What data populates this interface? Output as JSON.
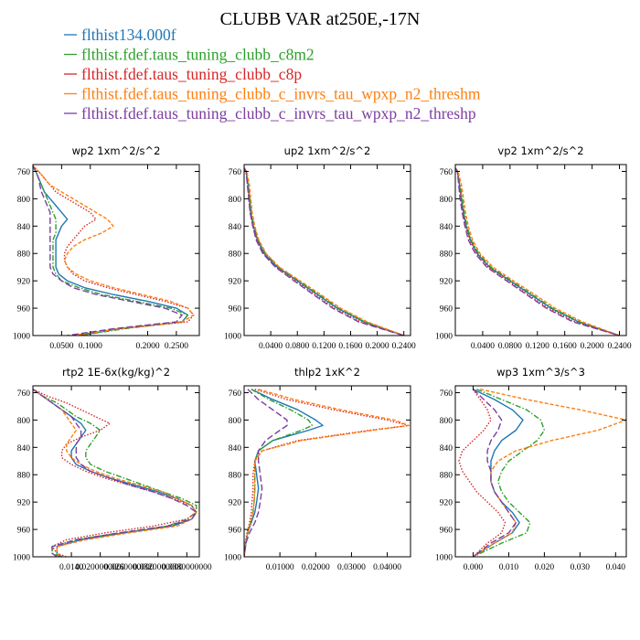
{
  "figure": {
    "title": "CLUBB VAR at250E,-17N"
  },
  "legend": [
    {
      "name": "flthist134.000f",
      "color": "#1f77b4"
    },
    {
      "name": "flthist.fdef.taus_tuning_clubb_c8m2",
      "color": "#2ca02c"
    },
    {
      "name": "flthist.fdef.taus_tuning_clubb_c8p",
      "color": "#d62728"
    },
    {
      "name": "flthist.fdef.taus_tuning_clubb_c_invrs_tau_wpxp_n2_threshm",
      "color": "#ff7f0e"
    },
    {
      "name": "flthist.fdef.taus_tuning_clubb_c_invrs_tau_wpxp_n2_threshp",
      "color": "#7b3fa0"
    }
  ],
  "chart_data": [
    {
      "type": "line",
      "title": "wp2 1xm^2/s^2",
      "xlim": [
        0,
        0.29
      ],
      "ylim": [
        1000,
        750
      ],
      "xticks": [
        0.05,
        0.1,
        0.2,
        0.25
      ],
      "xtick_labels": [
        "0.0500",
        "0.1000",
        "0.2000",
        "0.2500"
      ],
      "yticks": [
        760,
        800,
        840,
        880,
        920,
        960,
        1000
      ],
      "y": [
        752,
        760,
        770,
        780,
        790,
        800,
        810,
        820,
        830,
        840,
        850,
        860,
        870,
        880,
        890,
        900,
        910,
        920,
        930,
        940,
        950,
        960,
        970,
        980,
        990,
        1000
      ],
      "series": [
        {
          "style": "solid",
          "x": [
            0.0,
            0.005,
            0.01,
            0.015,
            0.02,
            0.03,
            0.04,
            0.05,
            0.06,
            0.05,
            0.045,
            0.04,
            0.04,
            0.04,
            0.04,
            0.04,
            0.045,
            0.06,
            0.09,
            0.14,
            0.2,
            0.25,
            0.27,
            0.26,
            0.15,
            0.08
          ]
        },
        {
          "style": "dashdot",
          "x": [
            0.0,
            0.005,
            0.01,
            0.015,
            0.02,
            0.025,
            0.03,
            0.035,
            0.04,
            0.04,
            0.04,
            0.035,
            0.035,
            0.035,
            0.035,
            0.035,
            0.04,
            0.05,
            0.08,
            0.12,
            0.18,
            0.24,
            0.27,
            0.26,
            0.16,
            0.08
          ]
        },
        {
          "style": "dotted",
          "x": [
            0.0,
            0.01,
            0.02,
            0.03,
            0.04,
            0.06,
            0.08,
            0.1,
            0.11,
            0.09,
            0.08,
            0.07,
            0.06,
            0.055,
            0.055,
            0.06,
            0.07,
            0.09,
            0.13,
            0.18,
            0.23,
            0.27,
            0.28,
            0.27,
            0.15,
            0.07
          ]
        },
        {
          "style": "dashed",
          "x": [
            0.0,
            0.01,
            0.02,
            0.03,
            0.05,
            0.07,
            0.09,
            0.11,
            0.13,
            0.14,
            0.12,
            0.09,
            0.07,
            0.06,
            0.055,
            0.06,
            0.075,
            0.1,
            0.14,
            0.19,
            0.24,
            0.27,
            0.28,
            0.26,
            0.15,
            0.07
          ]
        },
        {
          "style": "longdash",
          "x": [
            0.0,
            0.005,
            0.01,
            0.012,
            0.015,
            0.02,
            0.025,
            0.03,
            0.03,
            0.03,
            0.03,
            0.03,
            0.03,
            0.03,
            0.03,
            0.03,
            0.035,
            0.05,
            0.07,
            0.11,
            0.17,
            0.23,
            0.26,
            0.25,
            0.14,
            0.06
          ]
        }
      ]
    },
    {
      "type": "line",
      "title": "up2 1xm^2/s^2",
      "xlim": [
        0,
        0.25
      ],
      "ylim": [
        1000,
        750
      ],
      "xticks": [
        0.04,
        0.08,
        0.12,
        0.16,
        0.2,
        0.24
      ],
      "xtick_labels": [
        "0.0400",
        "0.0800",
        "0.1200",
        "0.1600",
        "0.2000",
        "0.2400"
      ],
      "yticks": [
        760,
        800,
        840,
        880,
        920,
        960,
        1000
      ],
      "y": [
        755,
        760,
        780,
        800,
        820,
        840,
        860,
        880,
        900,
        920,
        940,
        960,
        980,
        1000
      ],
      "series": [
        {
          "style": "solid",
          "x": [
            0.0,
            0.003,
            0.006,
            0.008,
            0.01,
            0.014,
            0.02,
            0.03,
            0.05,
            0.08,
            0.11,
            0.14,
            0.18,
            0.24
          ]
        },
        {
          "style": "dashdot",
          "x": [
            0.0,
            0.003,
            0.006,
            0.009,
            0.011,
            0.015,
            0.021,
            0.032,
            0.052,
            0.082,
            0.112,
            0.142,
            0.182,
            0.24
          ]
        },
        {
          "style": "dotted",
          "x": [
            0.0,
            0.003,
            0.005,
            0.007,
            0.009,
            0.013,
            0.019,
            0.029,
            0.048,
            0.077,
            0.106,
            0.136,
            0.175,
            0.24
          ]
        },
        {
          "style": "dashed",
          "x": [
            0.0,
            0.004,
            0.008,
            0.01,
            0.012,
            0.016,
            0.022,
            0.033,
            0.053,
            0.084,
            0.115,
            0.145,
            0.185,
            0.24
          ]
        },
        {
          "style": "longdash",
          "x": [
            0.0,
            0.003,
            0.005,
            0.007,
            0.009,
            0.013,
            0.018,
            0.028,
            0.047,
            0.075,
            0.104,
            0.133,
            0.172,
            0.24
          ]
        }
      ]
    },
    {
      "type": "line",
      "title": "vp2 1xm^2/s^2",
      "xlim": [
        0,
        0.25
      ],
      "ylim": [
        1000,
        750
      ],
      "xticks": [
        0.04,
        0.08,
        0.12,
        0.16,
        0.2,
        0.24
      ],
      "xtick_labels": [
        "0.0400",
        "0.0800",
        "0.1200",
        "0.1600",
        "0.2000",
        "0.2400"
      ],
      "yticks": [
        760,
        800,
        840,
        880,
        920,
        960,
        1000
      ],
      "y": [
        755,
        760,
        780,
        800,
        820,
        840,
        860,
        880,
        900,
        920,
        940,
        960,
        980,
        1000
      ],
      "series": [
        {
          "style": "solid",
          "x": [
            0.0,
            0.003,
            0.006,
            0.009,
            0.012,
            0.016,
            0.022,
            0.032,
            0.05,
            0.08,
            0.11,
            0.14,
            0.18,
            0.24
          ]
        },
        {
          "style": "dashdot",
          "x": [
            0.0,
            0.003,
            0.007,
            0.01,
            0.013,
            0.017,
            0.023,
            0.034,
            0.052,
            0.082,
            0.112,
            0.142,
            0.182,
            0.24
          ]
        },
        {
          "style": "dotted",
          "x": [
            0.0,
            0.003,
            0.006,
            0.008,
            0.011,
            0.015,
            0.021,
            0.031,
            0.048,
            0.077,
            0.106,
            0.136,
            0.175,
            0.24
          ]
        },
        {
          "style": "dashed",
          "x": [
            0.0,
            0.004,
            0.009,
            0.012,
            0.015,
            0.019,
            0.025,
            0.036,
            0.055,
            0.085,
            0.116,
            0.146,
            0.186,
            0.24
          ]
        },
        {
          "style": "longdash",
          "x": [
            0.0,
            0.003,
            0.005,
            0.007,
            0.01,
            0.014,
            0.019,
            0.029,
            0.046,
            0.075,
            0.104,
            0.133,
            0.172,
            0.24
          ]
        }
      ]
    },
    {
      "type": "line",
      "title": "rtp2 1E-6x(kg/kg)^2",
      "xlim": [
        0.006,
        0.0406
      ],
      "ylim": [
        1000,
        750
      ],
      "xticks": [
        0.014,
        0.02,
        0.026,
        0.032,
        0.038
      ],
      "xtick_labels": [
        "0.0140",
        "0.0200000000",
        "0.0260000000",
        "0.0320000000",
        "0.0380000000"
      ],
      "yticks": [
        760,
        800,
        840,
        880,
        920,
        960,
        1000
      ],
      "y": [
        755,
        765,
        775,
        785,
        795,
        805,
        815,
        825,
        835,
        845,
        855,
        865,
        875,
        885,
        895,
        905,
        915,
        925,
        935,
        945,
        955,
        965,
        975,
        985,
        995,
        1000
      ],
      "series": [
        {
          "style": "solid",
          "x": [
            0.006,
            0.008,
            0.01,
            0.012,
            0.014,
            0.016,
            0.017,
            0.016,
            0.015,
            0.014,
            0.014,
            0.015,
            0.018,
            0.022,
            0.027,
            0.032,
            0.036,
            0.039,
            0.04,
            0.039,
            0.035,
            0.025,
            0.016,
            0.011,
            0.011,
            0.012
          ]
        },
        {
          "style": "dashdot",
          "x": [
            0.006,
            0.008,
            0.011,
            0.013,
            0.015,
            0.018,
            0.02,
            0.019,
            0.018,
            0.017,
            0.017,
            0.018,
            0.021,
            0.025,
            0.029,
            0.033,
            0.037,
            0.04,
            0.04,
            0.038,
            0.034,
            0.024,
            0.015,
            0.01,
            0.01,
            0.012
          ]
        },
        {
          "style": "dotted",
          "x": [
            0.006,
            0.009,
            0.013,
            0.016,
            0.019,
            0.022,
            0.02,
            0.016,
            0.013,
            0.012,
            0.012,
            0.014,
            0.017,
            0.021,
            0.026,
            0.031,
            0.035,
            0.039,
            0.04,
            0.038,
            0.031,
            0.021,
            0.013,
            0.01,
            0.011,
            0.013
          ]
        },
        {
          "style": "dashed",
          "x": [
            0.006,
            0.008,
            0.01,
            0.012,
            0.013,
            0.014,
            0.015,
            0.014,
            0.013,
            0.013,
            0.014,
            0.016,
            0.019,
            0.023,
            0.028,
            0.033,
            0.036,
            0.039,
            0.04,
            0.039,
            0.036,
            0.026,
            0.017,
            0.011,
            0.011,
            0.012
          ]
        },
        {
          "style": "longdash",
          "x": [
            0.006,
            0.008,
            0.01,
            0.012,
            0.014,
            0.015,
            0.016,
            0.016,
            0.015,
            0.015,
            0.015,
            0.016,
            0.018,
            0.022,
            0.026,
            0.031,
            0.035,
            0.038,
            0.04,
            0.039,
            0.034,
            0.024,
            0.015,
            0.01,
            0.01,
            0.011
          ]
        }
      ]
    },
    {
      "type": "line",
      "title": "thlp2 1xK^2",
      "xlim": [
        0,
        0.0465
      ],
      "ylim": [
        1000,
        750
      ],
      "xticks": [
        0.01,
        0.02,
        0.03,
        0.04
      ],
      "xtick_labels": [
        "0.01000",
        "0.02000",
        "0.03000",
        "0.04000"
      ],
      "yticks": [
        760,
        800,
        840,
        880,
        920,
        960,
        1000
      ],
      "y": [
        755,
        770,
        785,
        800,
        808,
        815,
        830,
        845,
        860,
        880,
        900,
        920,
        935,
        950,
        965,
        980,
        1000
      ],
      "series": [
        {
          "style": "solid",
          "x": [
            0.002,
            0.008,
            0.015,
            0.02,
            0.022,
            0.018,
            0.008,
            0.004,
            0.003,
            0.0035,
            0.004,
            0.0035,
            0.003,
            0.002,
            0.001,
            0.0005,
            0.0
          ]
        },
        {
          "style": "dashdot",
          "x": [
            0.002,
            0.007,
            0.013,
            0.018,
            0.019,
            0.016,
            0.008,
            0.004,
            0.003,
            0.003,
            0.003,
            0.0028,
            0.0025,
            0.0018,
            0.001,
            0.0004,
            0.0
          ]
        },
        {
          "style": "dotted",
          "x": [
            0.003,
            0.012,
            0.025,
            0.04,
            0.046,
            0.035,
            0.015,
            0.005,
            0.003,
            0.0025,
            0.0025,
            0.0022,
            0.002,
            0.0015,
            0.0008,
            0.0003,
            0.0
          ]
        },
        {
          "style": "dashed",
          "x": [
            0.004,
            0.014,
            0.027,
            0.042,
            0.046,
            0.036,
            0.016,
            0.005,
            0.003,
            0.003,
            0.003,
            0.0028,
            0.0025,
            0.0018,
            0.001,
            0.0004,
            0.0
          ]
        },
        {
          "style": "longdash",
          "x": [
            0.001,
            0.004,
            0.008,
            0.012,
            0.012,
            0.01,
            0.006,
            0.004,
            0.004,
            0.0045,
            0.005,
            0.0045,
            0.004,
            0.003,
            0.0015,
            0.0005,
            0.0
          ]
        }
      ]
    },
    {
      "type": "line",
      "title": "wp3 1xm^3/s^3",
      "xlim": [
        -0.005,
        0.043
      ],
      "ylim": [
        1000,
        750
      ],
      "xticks": [
        0,
        0.01,
        0.02,
        0.03,
        0.04
      ],
      "xtick_labels": [
        "0.000",
        "0.010",
        "0.020",
        "0.030",
        "0.040"
      ],
      "yticks": [
        760,
        800,
        840,
        880,
        920,
        960,
        1000
      ],
      "y": [
        755,
        770,
        785,
        800,
        815,
        830,
        845,
        860,
        875,
        890,
        905,
        920,
        935,
        950,
        965,
        980,
        1000
      ],
      "series": [
        {
          "style": "solid",
          "x": [
            0.0,
            0.006,
            0.011,
            0.014,
            0.012,
            0.008,
            0.006,
            0.005,
            0.005,
            0.005,
            0.006,
            0.008,
            0.011,
            0.013,
            0.011,
            0.006,
            0.0
          ]
        },
        {
          "style": "dashdot",
          "x": [
            0.001,
            0.008,
            0.015,
            0.019,
            0.02,
            0.018,
            0.014,
            0.01,
            0.008,
            0.007,
            0.008,
            0.01,
            0.013,
            0.016,
            0.015,
            0.008,
            0.0
          ]
        },
        {
          "style": "dotted",
          "x": [
            0.0,
            0.002,
            0.004,
            0.005,
            0.003,
            0.0,
            -0.003,
            -0.004,
            -0.003,
            -0.001,
            0.001,
            0.004,
            0.007,
            0.009,
            0.008,
            0.004,
            0.0
          ]
        },
        {
          "style": "dashed",
          "x": [
            0.002,
            0.015,
            0.03,
            0.043,
            0.035,
            0.022,
            0.012,
            0.007,
            0.005,
            0.005,
            0.006,
            0.008,
            0.01,
            0.012,
            0.011,
            0.006,
            0.0
          ]
        },
        {
          "style": "longdash",
          "x": [
            0.0,
            0.003,
            0.006,
            0.008,
            0.007,
            0.005,
            0.004,
            0.004,
            0.005,
            0.005,
            0.006,
            0.008,
            0.01,
            0.012,
            0.01,
            0.005,
            0.0
          ]
        }
      ]
    }
  ]
}
